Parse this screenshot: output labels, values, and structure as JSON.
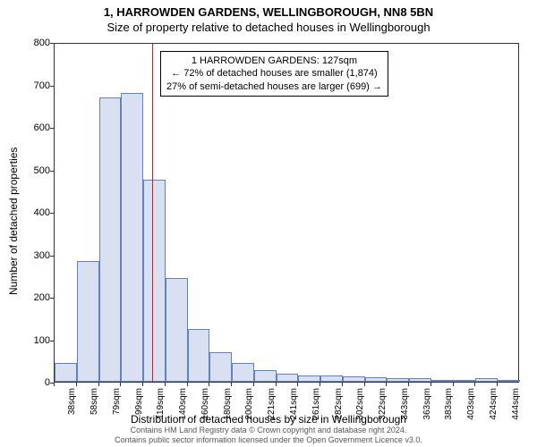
{
  "title_main": "1, HARROWDEN GARDENS, WELLINGBOROUGH, NN8 5BN",
  "title_sub": "Size of property relative to detached houses in Wellingborough",
  "y_axis_label": "Number of detached properties",
  "x_axis_label": "Distribution of detached houses by size in Wellingborough",
  "attribution_line1": "Contains HM Land Registry data © Crown copyright and database right 2024.",
  "attribution_line2": "Contains public sector information licensed under the Open Government Licence v3.0.",
  "chart": {
    "type": "histogram",
    "ylim": [
      0,
      800
    ],
    "ytick_step": 100,
    "bar_fill": "#d8e0f2",
    "bar_stroke": "#6080c0",
    "marker_color": "#d02020",
    "marker_x_value": 127,
    "x_start": 38,
    "x_step": 20.3,
    "categories": [
      "38sqm",
      "58sqm",
      "79sqm",
      "99sqm",
      "119sqm",
      "140sqm",
      "160sqm",
      "180sqm",
      "200sqm",
      "221sqm",
      "241sqm",
      "261sqm",
      "282sqm",
      "302sqm",
      "322sqm",
      "343sqm",
      "363sqm",
      "383sqm",
      "403sqm",
      "424sqm",
      "444sqm"
    ],
    "values": [
      45,
      285,
      670,
      680,
      475,
      245,
      125,
      70,
      45,
      28,
      20,
      15,
      15,
      12,
      10,
      8,
      8,
      5,
      5,
      8,
      5
    ],
    "background_color": "#ffffff",
    "axis_color": "#333333",
    "tick_fontsize": 11,
    "label_fontsize": 12,
    "title_fontsize": 13
  },
  "annotation": {
    "line1": "1 HARROWDEN GARDENS: 127sqm",
    "line2": "← 72% of detached houses are smaller (1,874)",
    "line3": "27% of semi-detached houses are larger (699) →"
  }
}
